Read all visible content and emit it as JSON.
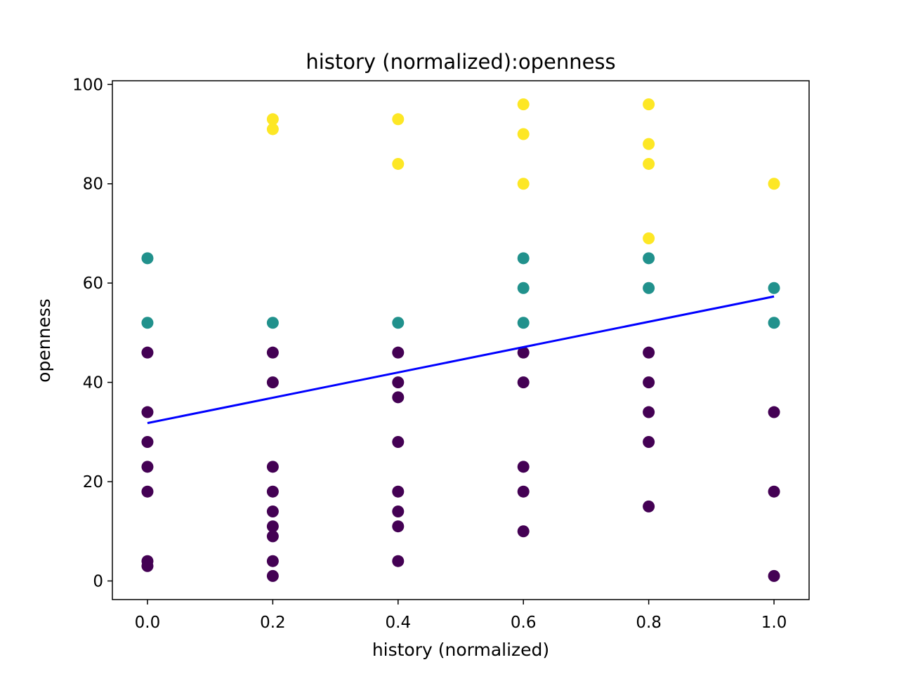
{
  "chart_data": {
    "type": "scatter",
    "title": "history (normalized):openness",
    "xlabel": "history (normalized)",
    "ylabel": "openness",
    "xlim": [
      -0.056,
      1.056
    ],
    "ylim": [
      -3.75,
      100.75
    ],
    "xticks": [
      0.0,
      0.2,
      0.4,
      0.6,
      0.8,
      1.0
    ],
    "xtick_labels": [
      "0.0",
      "0.2",
      "0.4",
      "0.6",
      "0.8",
      "1.0"
    ],
    "yticks": [
      0,
      20,
      40,
      60,
      80,
      100
    ],
    "ytick_labels": [
      "0",
      "20",
      "40",
      "60",
      "80",
      "100"
    ],
    "grid": false,
    "colors": {
      "low": "#440154",
      "mid": "#21918c",
      "high": "#fde725",
      "fit_line": "#0000ff"
    },
    "points": [
      {
        "x": 0.0,
        "y": 65,
        "group": "mid"
      },
      {
        "x": 0.0,
        "y": 52,
        "group": "mid"
      },
      {
        "x": 0.0,
        "y": 46,
        "group": "low"
      },
      {
        "x": 0.0,
        "y": 34,
        "group": "low"
      },
      {
        "x": 0.0,
        "y": 28,
        "group": "low"
      },
      {
        "x": 0.0,
        "y": 23,
        "group": "low"
      },
      {
        "x": 0.0,
        "y": 18,
        "group": "low"
      },
      {
        "x": 0.0,
        "y": 4,
        "group": "low"
      },
      {
        "x": 0.0,
        "y": 3,
        "group": "low"
      },
      {
        "x": 0.2,
        "y": 93,
        "group": "high"
      },
      {
        "x": 0.2,
        "y": 91,
        "group": "high"
      },
      {
        "x": 0.2,
        "y": 52,
        "group": "mid"
      },
      {
        "x": 0.2,
        "y": 46,
        "group": "low"
      },
      {
        "x": 0.2,
        "y": 40,
        "group": "low"
      },
      {
        "x": 0.2,
        "y": 23,
        "group": "low"
      },
      {
        "x": 0.2,
        "y": 18,
        "group": "low"
      },
      {
        "x": 0.2,
        "y": 14,
        "group": "low"
      },
      {
        "x": 0.2,
        "y": 11,
        "group": "low"
      },
      {
        "x": 0.2,
        "y": 9,
        "group": "low"
      },
      {
        "x": 0.2,
        "y": 4,
        "group": "low"
      },
      {
        "x": 0.2,
        "y": 1,
        "group": "low"
      },
      {
        "x": 0.4,
        "y": 93,
        "group": "high"
      },
      {
        "x": 0.4,
        "y": 84,
        "group": "high"
      },
      {
        "x": 0.4,
        "y": 52,
        "group": "mid"
      },
      {
        "x": 0.4,
        "y": 46,
        "group": "low"
      },
      {
        "x": 0.4,
        "y": 40,
        "group": "low"
      },
      {
        "x": 0.4,
        "y": 37,
        "group": "low"
      },
      {
        "x": 0.4,
        "y": 28,
        "group": "low"
      },
      {
        "x": 0.4,
        "y": 18,
        "group": "low"
      },
      {
        "x": 0.4,
        "y": 14,
        "group": "low"
      },
      {
        "x": 0.4,
        "y": 11,
        "group": "low"
      },
      {
        "x": 0.4,
        "y": 4,
        "group": "low"
      },
      {
        "x": 0.6,
        "y": 96,
        "group": "high"
      },
      {
        "x": 0.6,
        "y": 90,
        "group": "high"
      },
      {
        "x": 0.6,
        "y": 80,
        "group": "high"
      },
      {
        "x": 0.6,
        "y": 65,
        "group": "mid"
      },
      {
        "x": 0.6,
        "y": 59,
        "group": "mid"
      },
      {
        "x": 0.6,
        "y": 52,
        "group": "mid"
      },
      {
        "x": 0.6,
        "y": 46,
        "group": "low"
      },
      {
        "x": 0.6,
        "y": 40,
        "group": "low"
      },
      {
        "x": 0.6,
        "y": 23,
        "group": "low"
      },
      {
        "x": 0.6,
        "y": 18,
        "group": "low"
      },
      {
        "x": 0.6,
        "y": 10,
        "group": "low"
      },
      {
        "x": 0.8,
        "y": 96,
        "group": "high"
      },
      {
        "x": 0.8,
        "y": 88,
        "group": "high"
      },
      {
        "x": 0.8,
        "y": 84,
        "group": "high"
      },
      {
        "x": 0.8,
        "y": 69,
        "group": "high"
      },
      {
        "x": 0.8,
        "y": 65,
        "group": "mid"
      },
      {
        "x": 0.8,
        "y": 59,
        "group": "mid"
      },
      {
        "x": 0.8,
        "y": 46,
        "group": "low"
      },
      {
        "x": 0.8,
        "y": 40,
        "group": "low"
      },
      {
        "x": 0.8,
        "y": 34,
        "group": "low"
      },
      {
        "x": 0.8,
        "y": 28,
        "group": "low"
      },
      {
        "x": 0.8,
        "y": 15,
        "group": "low"
      },
      {
        "x": 1.0,
        "y": 80,
        "group": "high"
      },
      {
        "x": 1.0,
        "y": 59,
        "group": "mid"
      },
      {
        "x": 1.0,
        "y": 52,
        "group": "mid"
      },
      {
        "x": 1.0,
        "y": 34,
        "group": "low"
      },
      {
        "x": 1.0,
        "y": 18,
        "group": "low"
      },
      {
        "x": 1.0,
        "y": 1,
        "group": "low"
      }
    ],
    "fit_line": {
      "x": [
        0.0,
        1.0
      ],
      "y": [
        31.8,
        57.3
      ]
    }
  }
}
